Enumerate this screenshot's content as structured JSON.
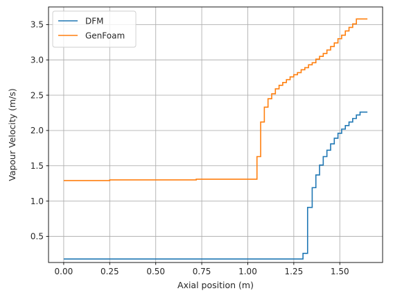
{
  "chart_data": {
    "type": "line",
    "xlabel": "Axial position (m)",
    "ylabel": "Vapour Velocity (m/s)",
    "xlim": [
      -0.0825,
      1.7325
    ],
    "ylim": [
      0.13,
      3.75
    ],
    "xticks": [
      0.0,
      0.25,
      0.5,
      0.75,
      1.0,
      1.25,
      1.5
    ],
    "xtick_labels": [
      "0.00",
      "0.25",
      "0.50",
      "0.75",
      "1.00",
      "1.25",
      "1.50"
    ],
    "yticks": [
      0.5,
      1.0,
      1.5,
      2.0,
      2.5,
      3.0,
      3.5
    ],
    "ytick_labels": [
      "0.5",
      "1.0",
      "1.5",
      "2.0",
      "2.5",
      "3.0",
      "3.5"
    ],
    "grid": true,
    "legend_position": "top-left",
    "step": true,
    "series": [
      {
        "name": "DFM",
        "color": "#1f77b4",
        "points": [
          [
            0.0,
            0.18
          ],
          [
            1.3,
            0.18
          ],
          [
            1.3,
            0.26
          ],
          [
            1.325,
            0.26
          ],
          [
            1.325,
            0.91
          ],
          [
            1.35,
            0.91
          ],
          [
            1.35,
            1.19
          ],
          [
            1.37,
            1.19
          ],
          [
            1.37,
            1.37
          ],
          [
            1.39,
            1.37
          ],
          [
            1.39,
            1.51
          ],
          [
            1.41,
            1.51
          ],
          [
            1.41,
            1.63
          ],
          [
            1.43,
            1.63
          ],
          [
            1.43,
            1.72
          ],
          [
            1.45,
            1.72
          ],
          [
            1.45,
            1.81
          ],
          [
            1.47,
            1.81
          ],
          [
            1.47,
            1.89
          ],
          [
            1.49,
            1.89
          ],
          [
            1.49,
            1.96
          ],
          [
            1.51,
            1.96
          ],
          [
            1.51,
            2.02
          ],
          [
            1.53,
            2.02
          ],
          [
            1.53,
            2.07
          ],
          [
            1.55,
            2.07
          ],
          [
            1.55,
            2.12
          ],
          [
            1.57,
            2.12
          ],
          [
            1.57,
            2.17
          ],
          [
            1.59,
            2.17
          ],
          [
            1.59,
            2.22
          ],
          [
            1.61,
            2.22
          ],
          [
            1.61,
            2.26
          ],
          [
            1.65,
            2.26
          ]
        ]
      },
      {
        "name": "GenFoam",
        "color": "#ff7f0e",
        "points": [
          [
            0.0,
            1.29
          ],
          [
            0.25,
            1.29
          ],
          [
            0.25,
            1.3
          ],
          [
            0.72,
            1.3
          ],
          [
            0.72,
            1.31
          ],
          [
            1.05,
            1.31
          ],
          [
            1.05,
            1.63
          ],
          [
            1.07,
            1.63
          ],
          [
            1.07,
            2.12
          ],
          [
            1.09,
            2.12
          ],
          [
            1.09,
            2.33
          ],
          [
            1.11,
            2.33
          ],
          [
            1.11,
            2.45
          ],
          [
            1.13,
            2.45
          ],
          [
            1.13,
            2.52
          ],
          [
            1.15,
            2.52
          ],
          [
            1.15,
            2.59
          ],
          [
            1.17,
            2.59
          ],
          [
            1.17,
            2.64
          ],
          [
            1.19,
            2.64
          ],
          [
            1.19,
            2.68
          ],
          [
            1.21,
            2.68
          ],
          [
            1.21,
            2.72
          ],
          [
            1.23,
            2.72
          ],
          [
            1.23,
            2.76
          ],
          [
            1.25,
            2.76
          ],
          [
            1.25,
            2.79
          ],
          [
            1.27,
            2.79
          ],
          [
            1.27,
            2.82
          ],
          [
            1.29,
            2.82
          ],
          [
            1.29,
            2.86
          ],
          [
            1.31,
            2.86
          ],
          [
            1.31,
            2.89
          ],
          [
            1.33,
            2.89
          ],
          [
            1.33,
            2.93
          ],
          [
            1.35,
            2.93
          ],
          [
            1.35,
            2.96
          ],
          [
            1.37,
            2.96
          ],
          [
            1.37,
            3.01
          ],
          [
            1.39,
            3.01
          ],
          [
            1.39,
            3.05
          ],
          [
            1.41,
            3.05
          ],
          [
            1.41,
            3.09
          ],
          [
            1.43,
            3.09
          ],
          [
            1.43,
            3.14
          ],
          [
            1.45,
            3.14
          ],
          [
            1.45,
            3.19
          ],
          [
            1.47,
            3.19
          ],
          [
            1.47,
            3.24
          ],
          [
            1.49,
            3.24
          ],
          [
            1.49,
            3.3
          ],
          [
            1.51,
            3.3
          ],
          [
            1.51,
            3.35
          ],
          [
            1.53,
            3.35
          ],
          [
            1.53,
            3.41
          ],
          [
            1.55,
            3.41
          ],
          [
            1.55,
            3.46
          ],
          [
            1.57,
            3.46
          ],
          [
            1.57,
            3.51
          ],
          [
            1.59,
            3.51
          ],
          [
            1.59,
            3.58
          ],
          [
            1.65,
            3.58
          ]
        ]
      }
    ]
  }
}
